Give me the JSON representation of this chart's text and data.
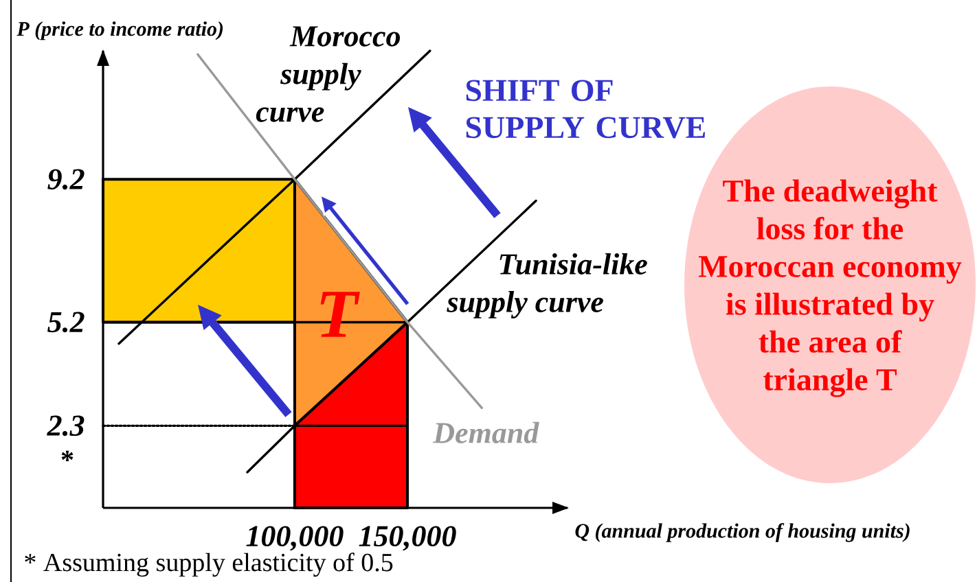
{
  "chart_data": {
    "type": "line",
    "xlabel": "Q (annual production of housing units)",
    "ylabel": "P (price to income ratio)",
    "xlim": [
      15000,
      221000
    ],
    "ylim": [
      0,
      12.8
    ],
    "xticks": [
      {
        "value": 100000,
        "label": "100,000"
      },
      {
        "value": 150000,
        "label": "150,000"
      }
    ],
    "yticks": [
      2.3,
      5.2,
      9.2
    ],
    "series": [
      {
        "type": "bar",
        "color": "#ffcc00",
        "x": [
          57500
        ],
        "values": [
          4.0
        ],
        "base": [
          5.2
        ]
      },
      {
        "type": "area",
        "color": "#ff9933",
        "x": [
          100000,
          150000
        ],
        "values": [
          9.2,
          5.2
        ]
      },
      {
        "type": "area",
        "color": "#ff0000",
        "x": [
          100000,
          150000
        ],
        "values": [
          2.3,
          5.2
        ]
      },
      {
        "color": "#000000",
        "x": [
          15000,
          150000
        ],
        "values": [
          5.2,
          5.2
        ]
      },
      {
        "color": "#000000",
        "line_style": "dotted",
        "x": [
          15000,
          100000
        ],
        "values": [
          2.3,
          2.3
        ]
      },
      {
        "color": "#000000",
        "x": [
          100000,
          150000
        ],
        "values": [
          2.3,
          2.3
        ]
      },
      {
        "name": "Morocco supply curve",
        "color": "#000000",
        "x": [
          22000,
          100000,
          160000
        ],
        "values": [
          4.6,
          9.2,
          12.8
        ]
      },
      {
        "name": "Tunisia-like supply curve",
        "color": "#000000",
        "x": [
          79000,
          100000,
          150000,
          207000
        ],
        "values": [
          1.0,
          2.3,
          5.2,
          8.6
        ]
      },
      {
        "name": "Demand",
        "color": "#999999",
        "x": [
          57000,
          100000,
          150000,
          183000
        ],
        "values": [
          12.7,
          9.2,
          5.2,
          2.8
        ]
      }
    ],
    "annotations": [
      "SHIFT OF SUPPLY CURVE",
      "The deadweight loss for the Moroccan economy is illustrated by the area of triangle T",
      "T",
      "*",
      "* Assuming supply elasticity of 0.5"
    ]
  }
}
